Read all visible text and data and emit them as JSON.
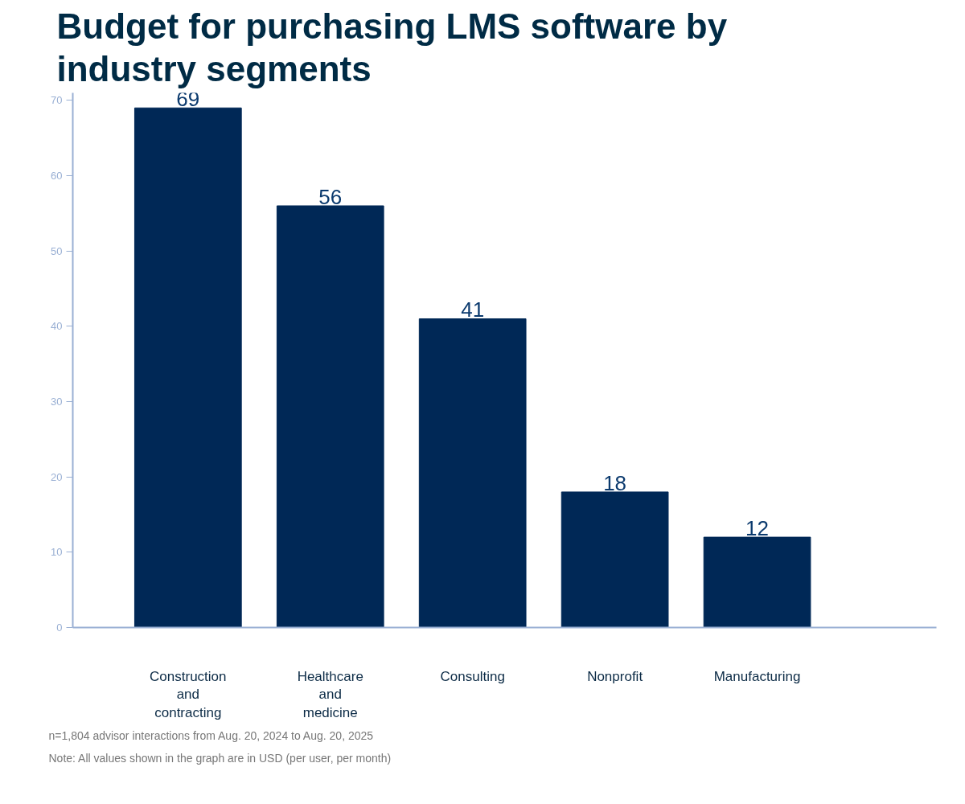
{
  "chart_data": {
    "type": "bar",
    "title": "Budget for purchasing LMS software by industry segments",
    "categories": [
      "Construction and contracting",
      "Healthcare and medicine",
      "Consulting",
      "Nonprofit",
      "Manufacturing"
    ],
    "values": [
      69,
      56,
      41,
      18,
      12
    ],
    "color": "#002856",
    "data_labels": true,
    "ylim": [
      0,
      71
    ],
    "yticks": [
      0,
      10,
      20,
      30,
      40,
      50,
      60,
      70
    ],
    "grid": false,
    "annotations": [
      "n=1,804 advisor interactions from Aug. 20, 2024 to Aug. 20, 2025",
      "Note: All values shown in the graph are in USD (per user, per month)"
    ]
  }
}
